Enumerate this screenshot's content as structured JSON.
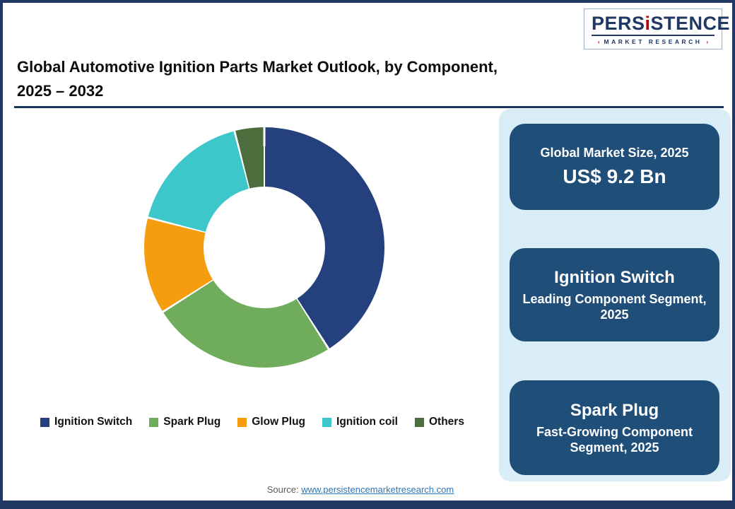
{
  "logo": {
    "brand_part1": "PERS",
    "brand_i": "i",
    "brand_part2": "STENCE",
    "sub_text": "MARKET RESEARCH",
    "mark_left": "‹",
    "mark_right": "›"
  },
  "header": {
    "title_line1": "Global Automotive Ignition Parts Market Outlook, by Component,",
    "title_line2": "2025 – 2032"
  },
  "chart_data": {
    "type": "pie",
    "subtype": "donut",
    "title": "Global Automotive Ignition Parts Market Outlook, by Component, 2025 – 2032",
    "categories": [
      "Ignition Switch",
      "Spark Plug",
      "Glow Plug",
      "Ignition coil",
      "Others"
    ],
    "values": [
      41,
      25,
      13,
      17,
      4
    ],
    "values_unit": "percent-estimated",
    "colors": [
      "#24407d",
      "#6fad5c",
      "#f59d0f",
      "#3ec7ca",
      "#4c6d3c"
    ],
    "start_angle_deg": 0,
    "direction": "clockwise",
    "donut_hole_ratio": 0.5,
    "legend_position": "bottom",
    "data_labels_shown": false
  },
  "legend": {
    "items": [
      {
        "label": "Ignition Switch",
        "color": "#24407d"
      },
      {
        "label": "Spark Plug",
        "color": "#6fad5c"
      },
      {
        "label": "Glow Plug",
        "color": "#f59d0f"
      },
      {
        "label": "Ignition coil",
        "color": "#3ec7ca"
      },
      {
        "label": "Others",
        "color": "#4c6d3c"
      }
    ]
  },
  "sidebar": {
    "cards": [
      {
        "line1": "Global Market Size, 2025",
        "line2": "US$ 9.2 Bn"
      },
      {
        "line1": "Ignition Switch",
        "line2": "Leading Component Segment, 2025"
      },
      {
        "line1": "Spark Plug",
        "line2": "Fast-Growing Component Segment, 2025"
      }
    ]
  },
  "footer": {
    "source_label": "Source: ",
    "source_link": "www.persistencemarketresearch.com"
  }
}
